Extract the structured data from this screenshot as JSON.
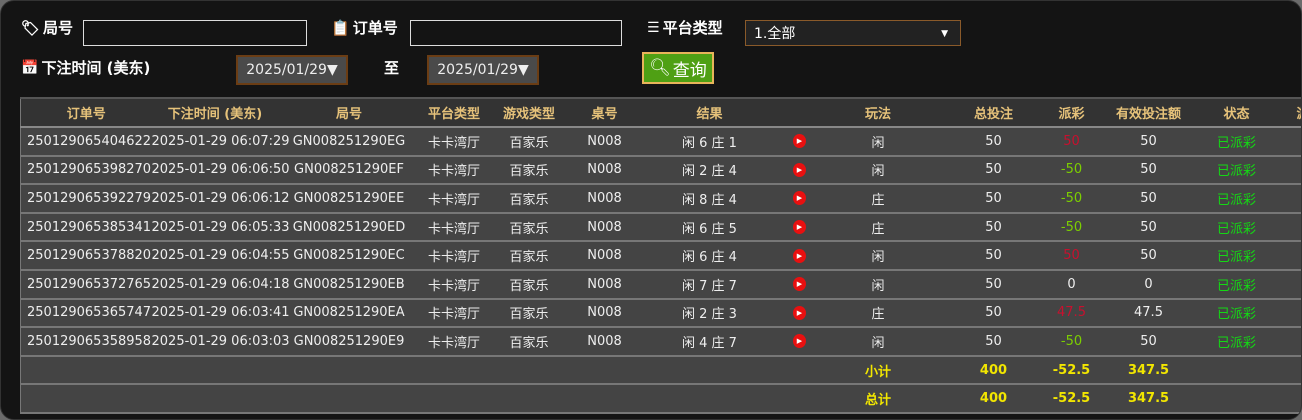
{
  "filters": {
    "round_label": "局号",
    "round_value": "",
    "order_label": "订单号",
    "order_value": "",
    "platform_label": "平台类型",
    "platform_value": "1.全部",
    "time_label": "下注时间 (美东)",
    "date_from": "2025/01/29",
    "to_label": "至",
    "date_to": "2025/01/29",
    "query_label": "查询"
  },
  "table": {
    "columns": [
      "订单号",
      "下注时间 (美东)",
      "局号",
      "平台类型",
      "游戏类型",
      "桌号",
      "结果",
      "",
      "玩法",
      "总投注",
      "派彩",
      "有效投注额",
      "状态",
      "游戏"
    ],
    "rows": [
      {
        "order": "250129065404622",
        "time": "2025-01-29 06:07:29",
        "round": "GN008251290EG",
        "platform": "卡卡湾厅",
        "game": "百家乐",
        "table": "N008",
        "result": "闲 6 庄 1",
        "play": "闲",
        "bet": "50",
        "payout": "50",
        "valid": "50",
        "status": "已派彩",
        "payout_color": "red"
      },
      {
        "order": "250129065398270",
        "time": "2025-01-29 06:06:50",
        "round": "GN008251290EF",
        "platform": "卡卡湾厅",
        "game": "百家乐",
        "table": "N008",
        "result": "闲 2 庄 4",
        "play": "闲",
        "bet": "50",
        "payout": "-50",
        "valid": "50",
        "status": "已派彩",
        "payout_color": "green"
      },
      {
        "order": "250129065392279",
        "time": "2025-01-29 06:06:12",
        "round": "GN008251290EE",
        "platform": "卡卡湾厅",
        "game": "百家乐",
        "table": "N008",
        "result": "闲 8 庄 4",
        "play": "庄",
        "bet": "50",
        "payout": "-50",
        "valid": "50",
        "status": "已派彩",
        "payout_color": "green"
      },
      {
        "order": "250129065385341",
        "time": "2025-01-29 06:05:33",
        "round": "GN008251290ED",
        "platform": "卡卡湾厅",
        "game": "百家乐",
        "table": "N008",
        "result": "闲 6 庄 5",
        "play": "庄",
        "bet": "50",
        "payout": "-50",
        "valid": "50",
        "status": "已派彩",
        "payout_color": "green"
      },
      {
        "order": "250129065378820",
        "time": "2025-01-29 06:04:55",
        "round": "GN008251290EC",
        "platform": "卡卡湾厅",
        "game": "百家乐",
        "table": "N008",
        "result": "闲 6 庄 4",
        "play": "闲",
        "bet": "50",
        "payout": "50",
        "valid": "50",
        "status": "已派彩",
        "payout_color": "red"
      },
      {
        "order": "250129065372765",
        "time": "2025-01-29 06:04:18",
        "round": "GN008251290EB",
        "platform": "卡卡湾厅",
        "game": "百家乐",
        "table": "N008",
        "result": "闲 7 庄 7",
        "play": "闲",
        "bet": "50",
        "payout": "0",
        "valid": "0",
        "status": "已派彩",
        "payout_color": "white"
      },
      {
        "order": "250129065365747",
        "time": "2025-01-29 06:03:41",
        "round": "GN008251290EA",
        "platform": "卡卡湾厅",
        "game": "百家乐",
        "table": "N008",
        "result": "闲 2 庄 3",
        "play": "庄",
        "bet": "50",
        "payout": "47.5",
        "valid": "47.5",
        "status": "已派彩",
        "payout_color": "red"
      },
      {
        "order": "250129065358958",
        "time": "2025-01-29 06:03:03",
        "round": "GN008251290E9",
        "platform": "卡卡湾厅",
        "game": "百家乐",
        "table": "N008",
        "result": "闲 4 庄 7",
        "play": "闲",
        "bet": "50",
        "payout": "-50",
        "valid": "50",
        "status": "已派彩",
        "payout_color": "green"
      }
    ],
    "subtotal": {
      "label": "小计",
      "bet": "400",
      "payout": "-52.5",
      "valid": "347.5"
    },
    "total": {
      "label": "总计",
      "bet": "400",
      "payout": "-52.5",
      "valid": "347.5"
    }
  },
  "colors": {
    "header_text": "#e6c27a",
    "payout_win": "#c8102e",
    "payout_loss": "#7ccf00",
    "status": "#14d814",
    "totals": "#f2e600",
    "query_button": "#4fa014"
  }
}
